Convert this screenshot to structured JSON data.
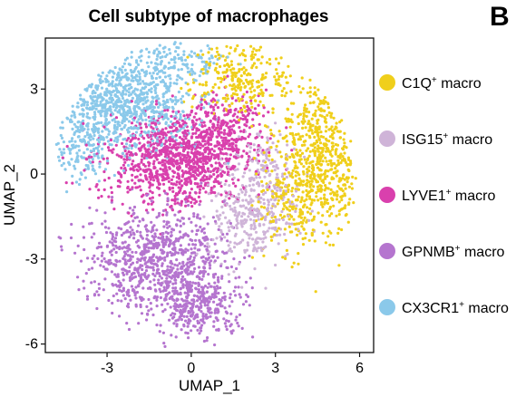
{
  "panel_letter": "B",
  "chart_data": {
    "type": "scatter",
    "title": "Cell subtype of macrophages",
    "xlabel": "UMAP_1",
    "ylabel": "UMAP_2",
    "xlim": [
      -5.2,
      6.5
    ],
    "ylim": [
      -6.3,
      4.8
    ],
    "xticks": [
      -3,
      0,
      3,
      6
    ],
    "xtick_labels": [
      "-3",
      "0",
      "3",
      "6"
    ],
    "yticks": [
      -6,
      -3,
      0,
      3
    ],
    "ytick_labels": [
      "-6",
      "-3",
      "0",
      "3"
    ],
    "grid": false,
    "legend_position": "right",
    "series": [
      {
        "name": "C1Q",
        "suffix": "+ macro",
        "color": "#f0cf1b",
        "regions": [
          {
            "cx": 4.6,
            "cy": 0.6,
            "sx": 0.95,
            "sy": 1.7,
            "n": 650
          },
          {
            "cx": 1.8,
            "cy": 3.4,
            "sx": 1.1,
            "sy": 0.75,
            "n": 260
          },
          {
            "cx": 3.3,
            "cy": -1.2,
            "sx": 0.6,
            "sy": 0.9,
            "n": 120
          }
        ]
      },
      {
        "name": "ISG15",
        "suffix": "+ macro",
        "color": "#cfb4d8",
        "regions": [
          {
            "cx": 2.2,
            "cy": -1.3,
            "sx": 0.95,
            "sy": 1.05,
            "n": 360
          },
          {
            "cx": 2.6,
            "cy": 0.4,
            "sx": 0.55,
            "sy": 0.6,
            "n": 70
          }
        ]
      },
      {
        "name": "LYVE1",
        "suffix": "+ macro",
        "color": "#d940ad",
        "regions": [
          {
            "cx": -0.5,
            "cy": 0.5,
            "sx": 1.45,
            "sy": 0.95,
            "n": 1050
          },
          {
            "cx": 1.2,
            "cy": 1.7,
            "sx": 0.75,
            "sy": 0.75,
            "n": 260
          }
        ]
      },
      {
        "name": "GPNMB",
        "suffix": "+ macro",
        "color": "#b575cf",
        "regions": [
          {
            "cx": -1.2,
            "cy": -3.0,
            "sx": 1.45,
            "sy": 1.05,
            "n": 850
          },
          {
            "cx": 0.3,
            "cy": -4.6,
            "sx": 0.95,
            "sy": 0.65,
            "n": 330
          }
        ]
      },
      {
        "name": "CX3CR1",
        "suffix": "+ macro",
        "color": "#8bc9ea",
        "regions": [
          {
            "cx": -2.3,
            "cy": 2.5,
            "sx": 1.35,
            "sy": 0.95,
            "n": 820
          },
          {
            "cx": -3.8,
            "cy": 1.0,
            "sx": 0.6,
            "sy": 0.75,
            "n": 160
          },
          {
            "cx": -0.5,
            "cy": 4.0,
            "sx": 0.9,
            "sy": 0.35,
            "n": 110
          }
        ]
      }
    ]
  }
}
